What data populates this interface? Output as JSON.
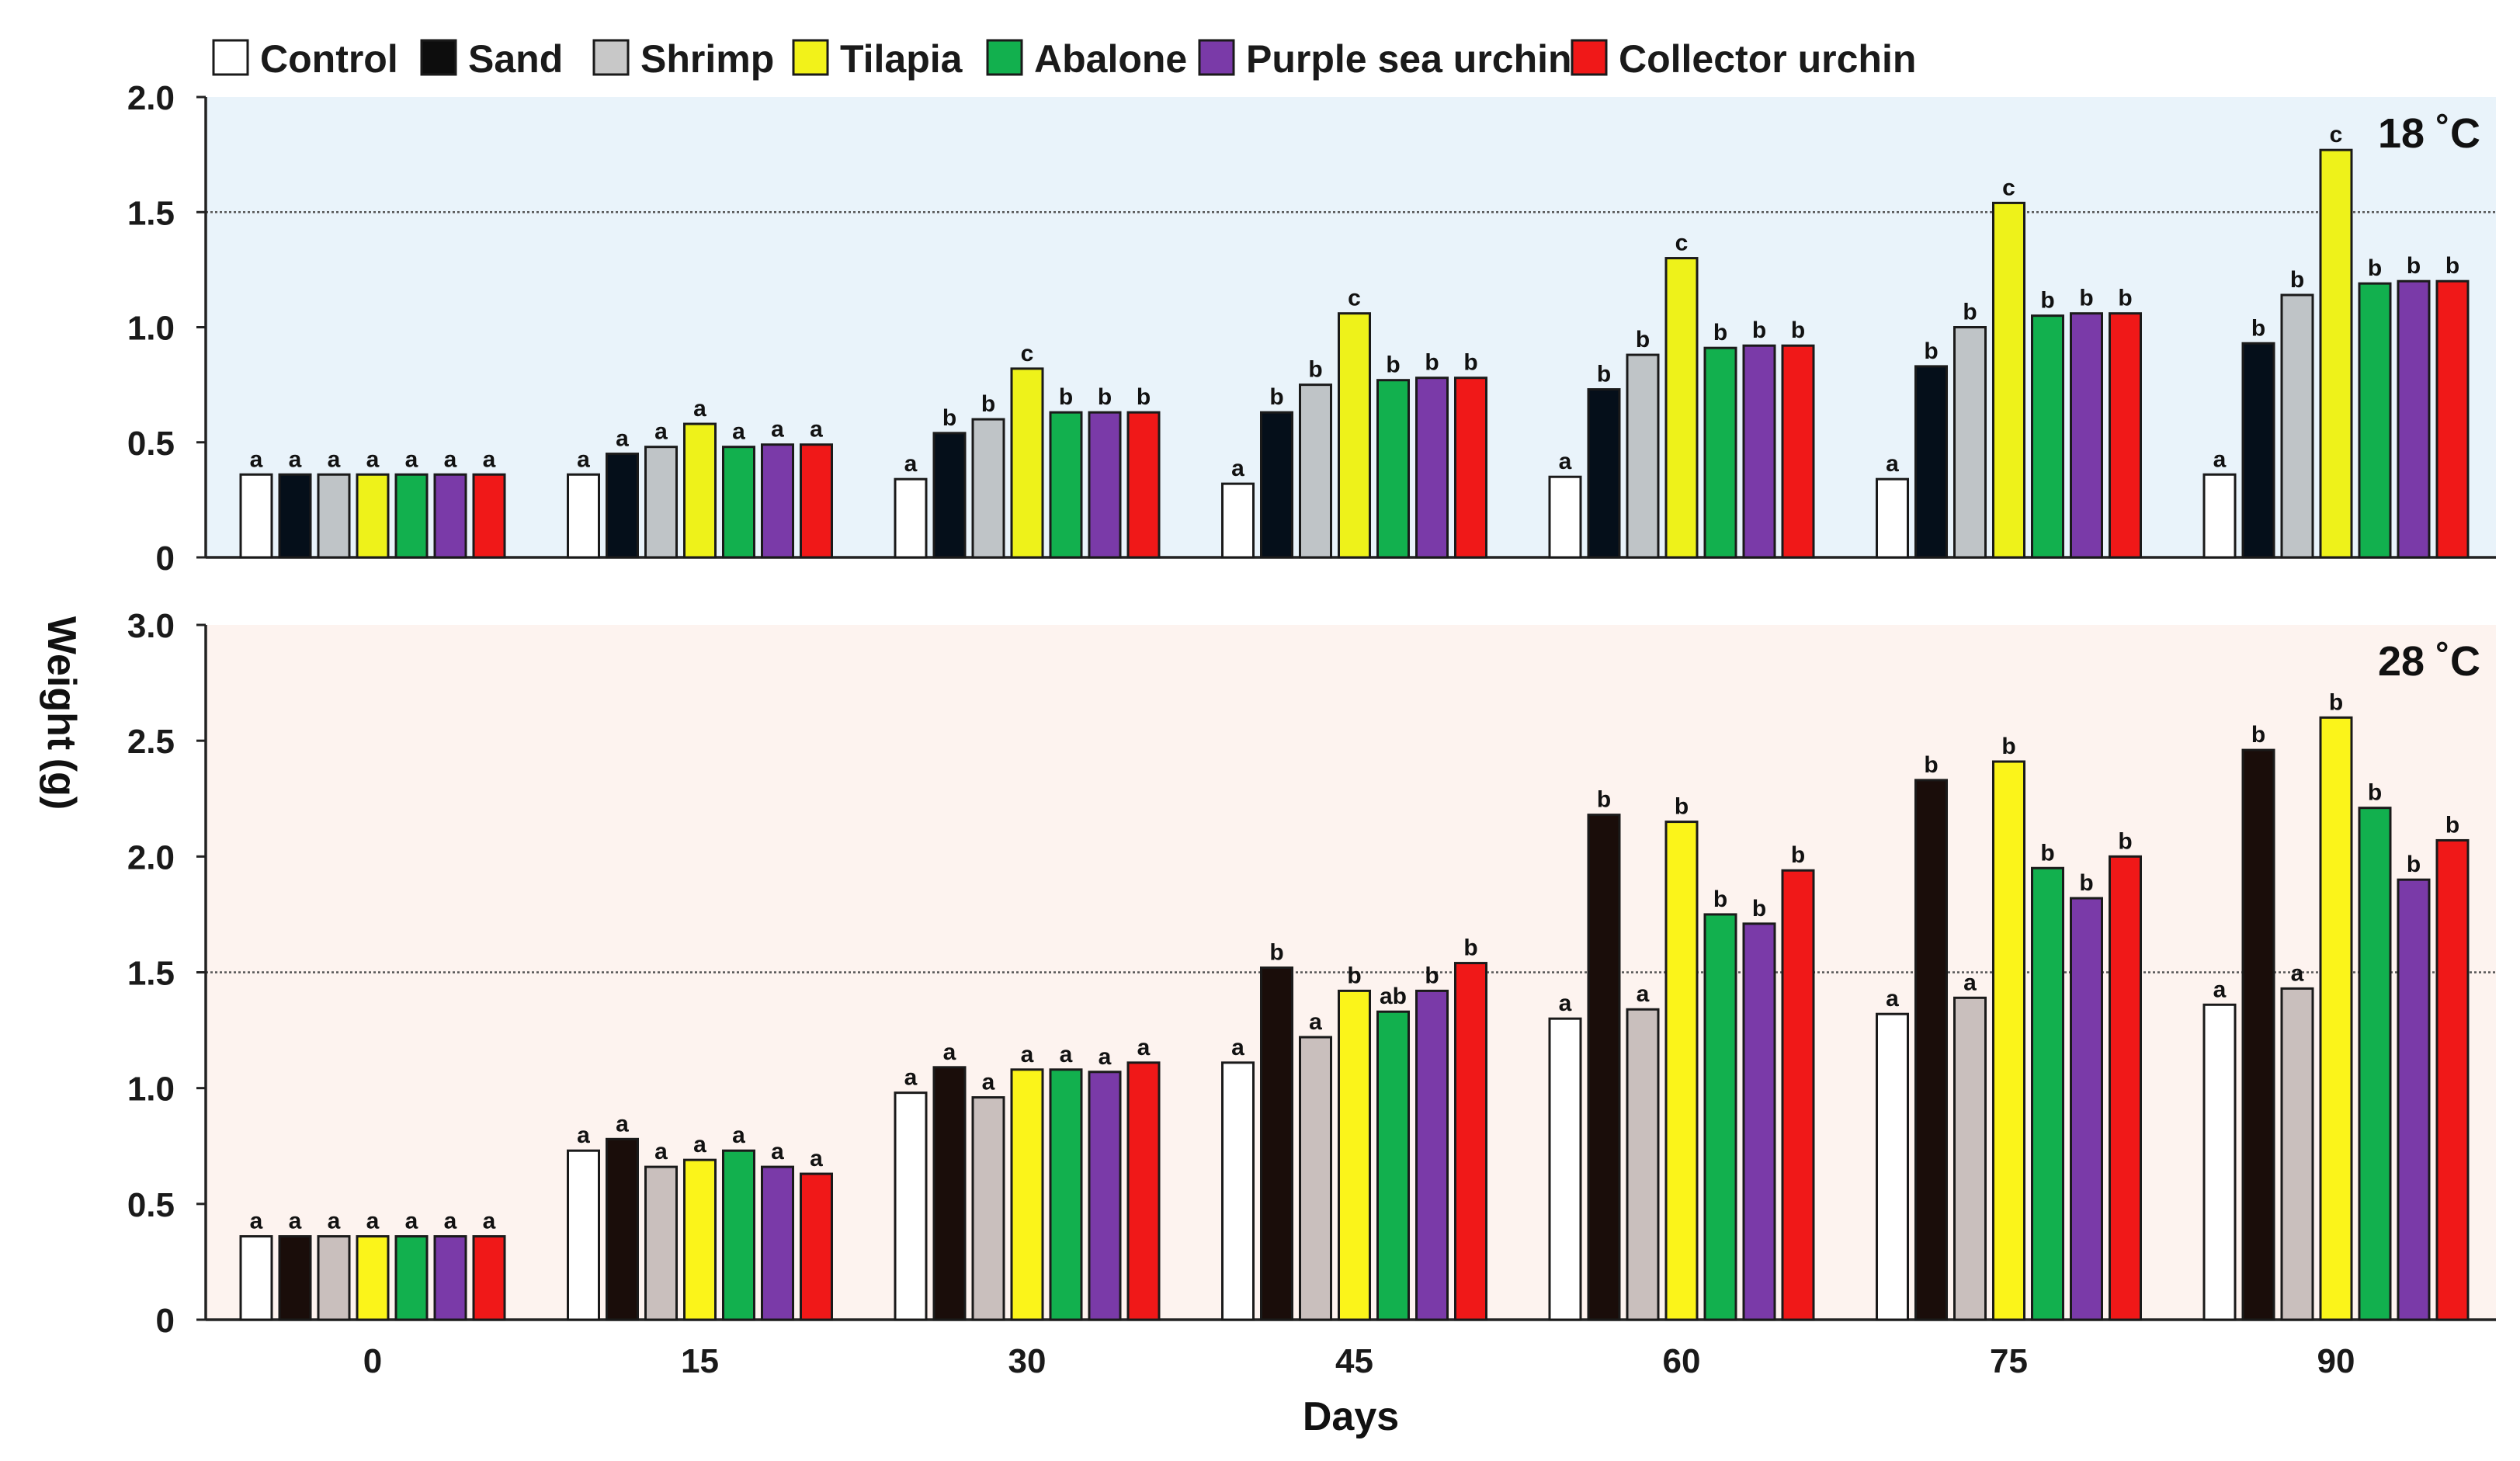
{
  "chart_data": {
    "type": "bar",
    "categories": [
      "0",
      "15",
      "30",
      "45",
      "60",
      "75",
      "90"
    ],
    "xlabel": "Days",
    "ylabel": "Weight (g)",
    "ylabel_parts": [
      "Weight",
      "(g)"
    ],
    "legend": [
      {
        "name": "Control",
        "color": "#ffffff"
      },
      {
        "name": "Sand",
        "color": "#0d0d0d"
      },
      {
        "name": "Shrimp",
        "color": "#c8c8c8"
      },
      {
        "name": "Tilapia",
        "color": "#f2f21a"
      },
      {
        "name": "Abalone",
        "color": "#12b04e"
      },
      {
        "name": "Purple sea urchin",
        "color": "#7a3aa8"
      },
      {
        "name": "Collector urchin",
        "color": "#f01818"
      }
    ],
    "panels": [
      {
        "title": "18 ˚C",
        "background": "#e9f3fa",
        "ylim": [
          0,
          2.0
        ],
        "yticks": [
          "0",
          "0.5",
          "1.0",
          "1.5",
          "2.0"
        ],
        "refline": 1.5,
        "series": [
          {
            "name": "Control",
            "color": "#ffffff",
            "values": [
              0.36,
              0.36,
              0.34,
              0.32,
              0.35,
              0.34,
              0.36
            ],
            "labels": [
              "a",
              "a",
              "a",
              "a",
              "a",
              "a",
              "a"
            ]
          },
          {
            "name": "Sand",
            "color": "#050f1a",
            "values": [
              0.36,
              0.45,
              0.54,
              0.63,
              0.73,
              0.83,
              0.93
            ],
            "labels": [
              "a",
              "a",
              "b",
              "b",
              "b",
              "b",
              "b"
            ]
          },
          {
            "name": "Shrimp",
            "color": "#bfc4c7",
            "values": [
              0.36,
              0.48,
              0.6,
              0.75,
              0.88,
              1.0,
              1.14
            ],
            "labels": [
              "a",
              "a",
              "b",
              "b",
              "b",
              "b",
              "b"
            ]
          },
          {
            "name": "Tilapia",
            "color": "#eef21a",
            "values": [
              0.36,
              0.58,
              0.82,
              1.06,
              1.3,
              1.54,
              1.77
            ],
            "labels": [
              "a",
              "a",
              "c",
              "c",
              "c",
              "c",
              "c"
            ]
          },
          {
            "name": "Abalone",
            "color": "#12b04e",
            "values": [
              0.36,
              0.48,
              0.63,
              0.77,
              0.91,
              1.05,
              1.19
            ],
            "labels": [
              "a",
              "a",
              "b",
              "b",
              "b",
              "b",
              "b"
            ]
          },
          {
            "name": "Purple sea urchin",
            "color": "#7a3aa8",
            "values": [
              0.36,
              0.49,
              0.63,
              0.78,
              0.92,
              1.06,
              1.2
            ],
            "labels": [
              "a",
              "a",
              "b",
              "b",
              "b",
              "b",
              "b"
            ]
          },
          {
            "name": "Collector urchin",
            "color": "#f01818",
            "values": [
              0.36,
              0.49,
              0.63,
              0.78,
              0.92,
              1.06,
              1.2
            ],
            "labels": [
              "a",
              "a",
              "b",
              "b",
              "b",
              "b",
              "b"
            ]
          }
        ]
      },
      {
        "title": "28 ˚C",
        "background": "#fdf3ef",
        "ylim": [
          0,
          3.0
        ],
        "yticks": [
          "0",
          "0.5",
          "1.0",
          "1.5",
          "2.0",
          "2.5",
          "3.0"
        ],
        "refline": 1.5,
        "series": [
          {
            "name": "Control",
            "color": "#ffffff",
            "values": [
              0.36,
              0.73,
              0.98,
              1.11,
              1.3,
              1.32,
              1.36
            ],
            "labels": [
              "a",
              "a",
              "a",
              "a",
              "a",
              "a",
              "a"
            ]
          },
          {
            "name": "Sand",
            "color": "#1a0d0a",
            "values": [
              0.36,
              0.78,
              1.09,
              1.52,
              2.18,
              2.33,
              2.46
            ],
            "labels": [
              "a",
              "a",
              "a",
              "b",
              "b",
              "b",
              "b"
            ]
          },
          {
            "name": "Shrimp",
            "color": "#c9bfbd",
            "values": [
              0.36,
              0.66,
              0.96,
              1.22,
              1.34,
              1.39,
              1.43
            ],
            "labels": [
              "a",
              "a",
              "a",
              "a",
              "a",
              "a",
              "a"
            ]
          },
          {
            "name": "Tilapia",
            "color": "#fbf41a",
            "values": [
              0.36,
              0.69,
              1.08,
              1.42,
              2.15,
              2.41,
              2.6
            ],
            "labels": [
              "a",
              "a",
              "a",
              "b",
              "b",
              "b",
              "b"
            ]
          },
          {
            "name": "Abalone",
            "color": "#12b04e",
            "values": [
              0.36,
              0.73,
              1.08,
              1.33,
              1.75,
              1.95,
              2.21
            ],
            "labels": [
              "a",
              "a",
              "a",
              "ab",
              "b",
              "b",
              "b"
            ]
          },
          {
            "name": "Purple sea urchin",
            "color": "#7a3aa8",
            "values": [
              0.36,
              0.66,
              1.07,
              1.42,
              1.71,
              1.82,
              1.9
            ],
            "labels": [
              "a",
              "a",
              "a",
              "b",
              "b",
              "b",
              "b"
            ]
          },
          {
            "name": "Collector urchin",
            "color": "#f01818",
            "values": [
              0.36,
              0.63,
              1.11,
              1.54,
              1.94,
              2.0,
              2.07
            ],
            "labels": [
              "a",
              "a",
              "a",
              "b",
              "b",
              "b",
              "b"
            ]
          }
        ]
      }
    ]
  }
}
